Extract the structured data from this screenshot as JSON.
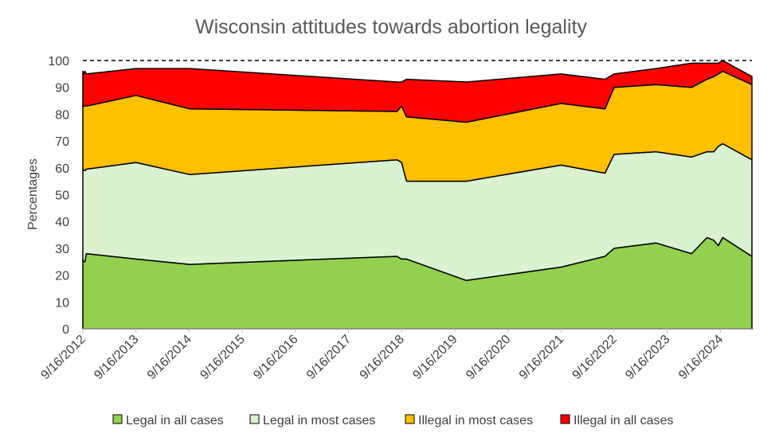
{
  "chart_data": {
    "type": "area",
    "title": "Wisconsin attitudes towards abortion legality",
    "xlabel": "",
    "ylabel": "Percentages",
    "ylim": [
      0,
      100
    ],
    "yticks": [
      "0",
      "10",
      "20",
      "30",
      "40",
      "50",
      "60",
      "70",
      "80",
      "90",
      "100"
    ],
    "xticks": [
      "9/16/2012",
      "9/16/2013",
      "9/16/2014",
      "9/16/2015",
      "9/16/2016",
      "9/16/2017",
      "9/16/2018",
      "9/16/2019",
      "9/16/2020",
      "9/16/2021",
      "9/16/2022",
      "9/16/2023",
      "9/16/2024"
    ],
    "x": [
      "2012-09-16",
      "2012-09-20",
      "2012-09-30",
      "2012-10-10",
      "2013-09-16",
      "2014-09-20",
      "2018-08-15",
      "2018-09-16",
      "2018-10-20",
      "2019-12-05",
      "2021-09-16",
      "2022-07-15",
      "2022-09-16",
      "2023-07-01",
      "2024-03-01",
      "2024-06-15",
      "2024-08-01",
      "2024-09-01",
      "2024-10-01",
      "2025-04-20"
    ],
    "series": [
      {
        "name": "Legal in all cases",
        "color": "#92d050",
        "values": [
          26,
          25,
          25,
          28,
          26,
          24,
          27,
          26,
          26,
          18,
          23,
          27,
          30,
          32,
          28,
          34,
          33,
          31,
          34,
          27
        ]
      },
      {
        "name": "Legal in most cases",
        "color": "#d9f2d0",
        "values": [
          34,
          34,
          34,
          31.5,
          36,
          33.5,
          36,
          36,
          29,
          37,
          38,
          31,
          35,
          34,
          36,
          32,
          33,
          37,
          35,
          36
        ]
      },
      {
        "name": "Illegal in most cases",
        "color": "#ffc000",
        "values": [
          23,
          24,
          24,
          23.5,
          25,
          24.5,
          18,
          21,
          24,
          22,
          23,
          24,
          25,
          25,
          26,
          27,
          28,
          27,
          27,
          28
        ]
      },
      {
        "name": "Illegal in all cases",
        "color": "#ff0000",
        "values": [
          13,
          12,
          13,
          12,
          10,
          15,
          11,
          9,
          14,
          15,
          11,
          11,
          5,
          6,
          9,
          6,
          5,
          4,
          4,
          3
        ]
      }
    ],
    "reference_line": {
      "value": 100,
      "style": "dashed"
    },
    "grid": false,
    "legend_position": "bottom"
  }
}
